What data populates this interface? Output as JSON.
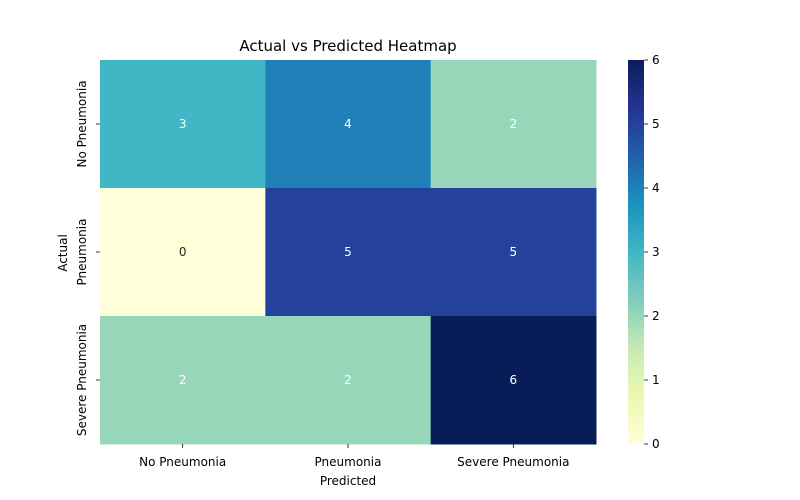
{
  "chart_data": {
    "type": "heatmap",
    "title": "Actual vs Predicted Heatmap",
    "xlabel": "Predicted",
    "ylabel": "Actual",
    "x_categories": [
      "No Pneumonia",
      "Pneumonia",
      "Severe Pneumonia"
    ],
    "y_categories": [
      "No Pneumonia",
      "Pneumonia",
      "Severe Pneumonia"
    ],
    "values": [
      [
        3,
        4,
        2
      ],
      [
        0,
        5,
        5
      ],
      [
        2,
        2,
        6
      ]
    ],
    "colorbar": {
      "min": 0,
      "max": 6,
      "ticks": [
        "0",
        "1",
        "2",
        "3",
        "4",
        "5",
        "6"
      ],
      "colormap": "YlGnBu",
      "stops": [
        "#ffffd9",
        "#edf8b1",
        "#c7e9b4",
        "#7fcdbb",
        "#41b6c4",
        "#1d91c0",
        "#225ea8",
        "#253494",
        "#081d58"
      ]
    },
    "annotation_light_color": "#ffffff",
    "annotation_dark_color": "#262626"
  }
}
